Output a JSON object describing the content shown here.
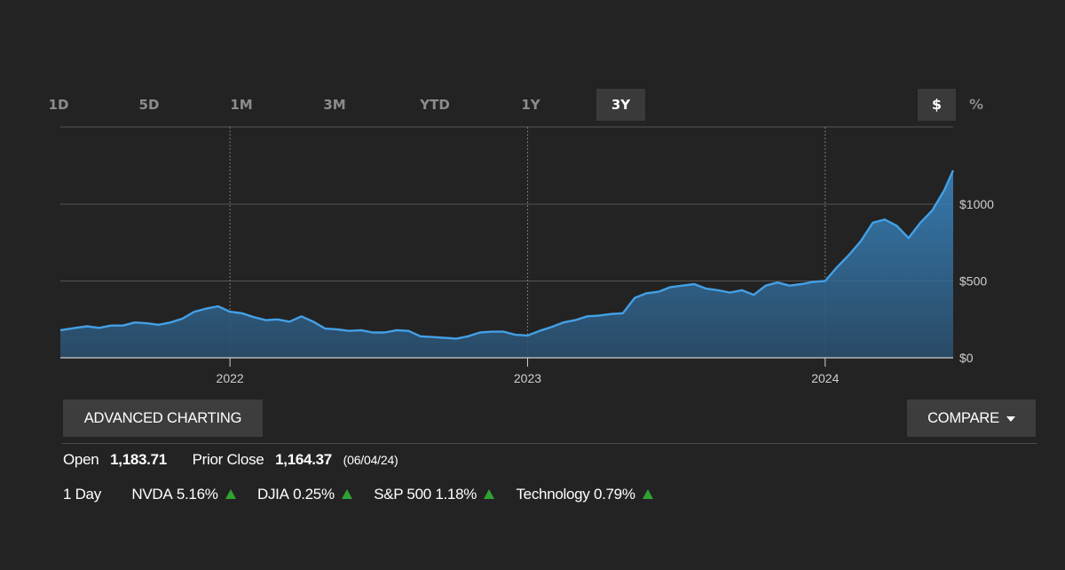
{
  "range_tabs": [
    "1D",
    "5D",
    "1M",
    "3M",
    "YTD",
    "1Y",
    "3Y"
  ],
  "active_range": "3Y",
  "unit_toggle": {
    "dollar": "$",
    "percent": "%",
    "active": "$"
  },
  "chart_data": {
    "type": "area",
    "x_tick_labels": [
      "2022",
      "2023",
      "2024"
    ],
    "y_tick_labels": [
      "$1000",
      "$500",
      "$0"
    ],
    "y_ticks": [
      1000,
      500,
      0
    ],
    "ylim": [
      0,
      1500
    ],
    "xlim": [
      2021.43,
      2024.43
    ],
    "grid": true,
    "color": "#3b8fd4",
    "series": [
      {
        "x": [
          2021.43,
          2021.48,
          2021.52,
          2021.56,
          2021.6,
          2021.64,
          2021.68,
          2021.72,
          2021.76,
          2021.8,
          2021.84,
          2021.88,
          2021.92,
          2021.96,
          2022.0,
          2022.04,
          2022.08,
          2022.12,
          2022.16,
          2022.2,
          2022.24,
          2022.28,
          2022.32,
          2022.36,
          2022.4,
          2022.44,
          2022.48,
          2022.52,
          2022.56,
          2022.6,
          2022.64,
          2022.68,
          2022.72,
          2022.76,
          2022.8,
          2022.84,
          2022.88,
          2022.92,
          2022.96,
          2023.0,
          2023.04,
          2023.08,
          2023.12,
          2023.16,
          2023.2,
          2023.24,
          2023.28,
          2023.32,
          2023.36,
          2023.4,
          2023.44,
          2023.48,
          2023.52,
          2023.56,
          2023.6,
          2023.64,
          2023.68,
          2023.72,
          2023.76,
          2023.8,
          2023.84,
          2023.88,
          2023.92,
          2023.96,
          2024.0,
          2024.04,
          2024.08,
          2024.12,
          2024.16,
          2024.2,
          2024.24,
          2024.28,
          2024.32,
          2024.36,
          2024.4,
          2024.43
        ],
        "y": [
          180,
          195,
          205,
          195,
          210,
          210,
          230,
          225,
          215,
          230,
          255,
          300,
          320,
          335,
          300,
          290,
          265,
          245,
          250,
          235,
          270,
          235,
          190,
          185,
          175,
          180,
          165,
          165,
          180,
          175,
          140,
          135,
          130,
          125,
          140,
          165,
          170,
          170,
          150,
          145,
          175,
          200,
          230,
          245,
          270,
          275,
          285,
          290,
          390,
          420,
          430,
          460,
          470,
          480,
          450,
          440,
          425,
          440,
          410,
          470,
          490,
          470,
          480,
          495,
          500,
          590,
          670,
          760,
          880,
          900,
          860,
          780,
          880,
          960,
          1090,
          1220
        ]
      }
    ]
  },
  "buttons": {
    "advanced": "ADVANCED CHARTING",
    "compare": "COMPARE"
  },
  "quote": {
    "open_label": "Open",
    "open_value": "1,183.71",
    "prior_label": "Prior Close",
    "prior_value": "1,164.37",
    "prior_date": "(06/04/24)"
  },
  "performance": {
    "period_label": "1 Day",
    "items": [
      {
        "name": "NVDA",
        "change": "5.16%"
      },
      {
        "name": "DJIA",
        "change": "0.25%"
      },
      {
        "name": "S&P 500",
        "change": "1.18%"
      },
      {
        "name": "Technology",
        "change": "0.79%"
      }
    ],
    "up_color": "#2fa233"
  }
}
